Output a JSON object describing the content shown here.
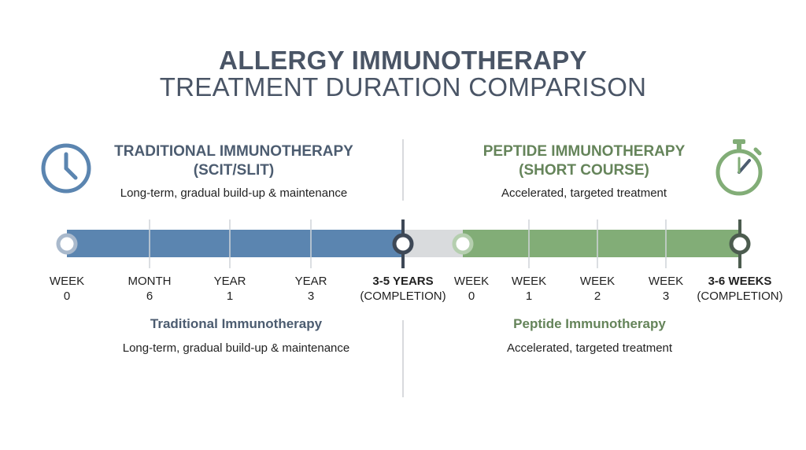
{
  "title": {
    "line1": "ALLERGY IMMUNOTHERAPY",
    "line2": "TREATMENT DURATION COMPARISON"
  },
  "traditional": {
    "heading_line1": "TRADITIONAL IMMUNOTHERAPY",
    "heading_line2": "(SCIT/SLIT)",
    "description": "Long-term, gradual build-up & maintenance",
    "icon": "clock-icon",
    "color": "#5b85b0",
    "timeline": [
      {
        "top": "WEEK",
        "bottom": "0",
        "bold": false
      },
      {
        "top": "MONTH",
        "bottom": "6",
        "bold": false
      },
      {
        "top": "YEAR",
        "bottom": "1",
        "bold": false
      },
      {
        "top": "YEAR",
        "bottom": "3",
        "bold": false
      },
      {
        "top": "3-5 YEARS",
        "bottom": "(COMPLETION)",
        "bold": true
      }
    ],
    "bottom_title": "Traditional Immunotherapy",
    "bottom_description": "Long-term, gradual build-up & maintenance"
  },
  "peptide": {
    "heading_line1": "PEPTIDE IMMUNOTHERAPY",
    "heading_line2": "(SHORT COURSE)",
    "description": "Accelerated, targeted treatment",
    "icon": "stopwatch-icon",
    "color": "#82ad77",
    "timeline": [
      {
        "top": "WEEK",
        "bottom": "0",
        "bold": false
      },
      {
        "top": "WEEK",
        "bottom": "1",
        "bold": false
      },
      {
        "top": "WEEK",
        "bottom": "2",
        "bold": false
      },
      {
        "top": "WEEK",
        "bottom": "3",
        "bold": false
      },
      {
        "top": "3-6 WEEKS",
        "bottom": "(COMPLETION)",
        "bold": true
      }
    ],
    "bottom_title": "Peptide Immunotherapy",
    "bottom_description": "Accelerated, targeted treatment"
  },
  "gap_color": "#d9dbdd"
}
